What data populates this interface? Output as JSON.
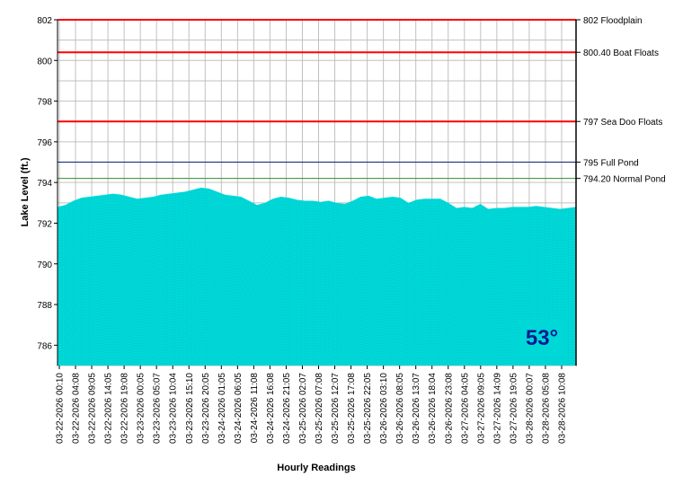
{
  "chart_data": {
    "type": "area",
    "title": "",
    "xlabel": "Hourly Readings",
    "ylabel": "Lake Level (ft.)",
    "ylim": [
      785,
      802
    ],
    "yticks": [
      786,
      788,
      790,
      792,
      794,
      796,
      798,
      800,
      802
    ],
    "grid": true,
    "xticks": [
      "03-22-2026 00:10",
      "03-22-2026 04:08",
      "03-22-2026 09:05",
      "03-22-2026 14:05",
      "03-22-2026 19:08",
      "03-23-2026 00:05",
      "03-23-2026 05:07",
      "03-23-2026 10:04",
      "03-23-2026 15:10",
      "03-23-2026 20:05",
      "03-24-2026 01:05",
      "03-24-2026 06:05",
      "03-24-2026 11:08",
      "03-24-2026 16:08",
      "03-24-2026 21:05",
      "03-25-2026 02:07",
      "03-25-2026 07:08",
      "03-25-2026 12:07",
      "03-25-2026 17:08",
      "03-25-2026 22:05",
      "03-26-2026 03:10",
      "03-26-2026 08:05",
      "03-26-2026 13:07",
      "03-26-2026 18:04",
      "03-26-2026 23:08",
      "03-27-2026 04:05",
      "03-27-2026 09:05",
      "03-27-2026 14:09",
      "03-27-2026 19:05",
      "03-28-2026 00:07",
      "03-28-2026 05:08",
      "03-28-2026 10:08"
    ],
    "series": [
      {
        "values": [
          792.8,
          792.9,
          793.1,
          793.25,
          793.3,
          793.35,
          793.4,
          793.45,
          793.4,
          793.3,
          793.2,
          793.25,
          793.3,
          793.4,
          793.45,
          793.5,
          793.55,
          793.65,
          793.75,
          793.7,
          793.55,
          793.4,
          793.35,
          793.3,
          793.1,
          792.9,
          793.0,
          793.2,
          793.3,
          793.25,
          793.15,
          793.1,
          793.1,
          793.05,
          793.1,
          793.0,
          792.95,
          793.1,
          793.3,
          793.35,
          793.2,
          793.25,
          793.3,
          793.25,
          793.0,
          793.15,
          793.2,
          793.2,
          793.2,
          793.0,
          792.75,
          792.8,
          792.75,
          792.95,
          792.7,
          792.75,
          792.75,
          792.8,
          792.8,
          792.8,
          792.85,
          792.8,
          792.75,
          792.7,
          792.75,
          792.8
        ]
      }
    ],
    "reference_lines": [
      {
        "value": 802,
        "label": "802 Floodplain",
        "color": "#ff0000"
      },
      {
        "value": 800.4,
        "label": "800.40 Boat Floats",
        "color": "#ff0000"
      },
      {
        "value": 797,
        "label": "797 Sea Doo Floats",
        "color": "#ff0000"
      },
      {
        "value": 795,
        "label": "795 Full Pond",
        "color": "#0b1f7a"
      },
      {
        "value": 794.2,
        "label": "794.20 Normal Pond",
        "color": "#2f8f2f"
      }
    ],
    "temperature": "53°",
    "fill_color": "#00d8d8",
    "temp_text_color": "#0a1b8f"
  }
}
